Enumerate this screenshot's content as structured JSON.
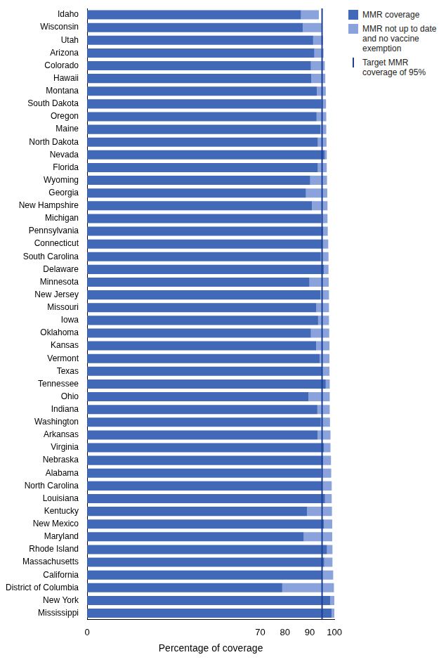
{
  "chart_data": {
    "type": "bar",
    "orientation": "horizontal",
    "stacked": true,
    "grid": false,
    "legend": "right",
    "x_label": "Percentage of coverage",
    "categories": [
      "Idaho",
      "Wisconsin",
      "Utah",
      "Arizona",
      "Colorado",
      "Hawaii",
      "Montana",
      "South Dakota",
      "Oregon",
      "Maine",
      "North Dakota",
      "Nevada",
      "Florida",
      "Wyoming",
      "Georgia",
      "New Hampshire",
      "Michigan",
      "Pennsylvania",
      "Connecticut",
      "South Carolina",
      "Delaware",
      "Minnesota",
      "New Jersey",
      "Missouri",
      "Iowa",
      "Oklahoma",
      "Kansas",
      "Vermont",
      "Texas",
      "Tennessee",
      "Ohio",
      "Indiana",
      "Washington",
      "Arkansas",
      "Virginia",
      "Nebraska",
      "Alabama",
      "North Carolina",
      "Louisiana",
      "Kentucky",
      "New Mexico",
      "Maryland",
      "Rhode Island",
      "Massachusetts",
      "California",
      "District of Columbia",
      "New York",
      "Mississippi"
    ],
    "series": [
      {
        "name": "MMR coverage",
        "color": "#4169b8",
        "values": [
          86.5,
          87.2,
          91.4,
          91.9,
          90.5,
          90.7,
          92.9,
          94.7,
          92.8,
          94.3,
          93.3,
          96.1,
          93.3,
          90.2,
          88.5,
          90.9,
          94.6,
          95.5,
          95.3,
          94.5,
          95.7,
          89.9,
          94.3,
          92.7,
          93.4,
          90.5,
          92.6,
          94.0,
          95.2,
          96.5,
          89.5,
          93.1,
          94.5,
          93.2,
          95.8,
          95.4,
          94.7,
          95.2,
          96.2,
          88.9,
          95.7,
          87.6,
          97.0,
          95.9,
          95.2,
          78.9,
          98.3,
          98.9
        ]
      },
      {
        "name": "MMR not up to date and no vaccine exemption",
        "color": "#8aa3dc",
        "values": [
          7.2,
          7.6,
          4.0,
          3.7,
          5.6,
          5.6,
          3.6,
          1.9,
          3.9,
          2.4,
          3.5,
          0.8,
          3.6,
          6.8,
          8.6,
          6.3,
          2.6,
          1.8,
          2.2,
          3.1,
          1.9,
          7.8,
          3.5,
          5.1,
          4.4,
          7.4,
          5.4,
          4.0,
          2.8,
          1.6,
          8.6,
          5.0,
          3.7,
          5.2,
          2.6,
          3.2,
          4.0,
          3.7,
          2.7,
          10.1,
          3.4,
          11.5,
          2.2,
          3.3,
          4.3,
          20.9,
          1.7,
          1.1
        ]
      }
    ],
    "annotations": [
      {
        "value": 95,
        "label": "Target MMR coverage of 95%",
        "color": "#1c3f94"
      }
    ],
    "xlim": [
      0,
      100
    ],
    "xticks": [
      0,
      70,
      80,
      90,
      100
    ]
  }
}
